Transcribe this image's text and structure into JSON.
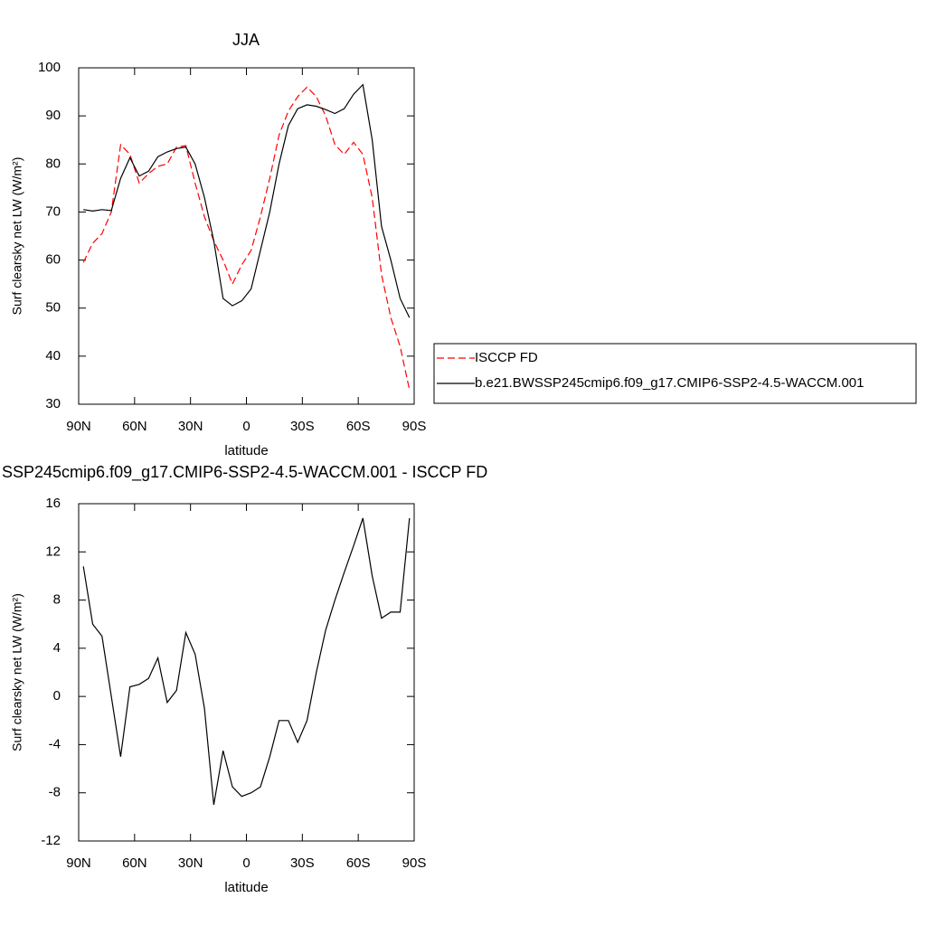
{
  "chart_data": [
    {
      "type": "line",
      "title": "JJA",
      "xlabel": "latitude",
      "ylabel": "Surf clearsky net LW (W/m²)",
      "xlim": [
        90,
        -90
      ],
      "xticks": [
        {
          "value": 90,
          "label": "90N"
        },
        {
          "value": 60,
          "label": "60N"
        },
        {
          "value": 30,
          "label": "30N"
        },
        0,
        {
          "value": -30,
          "label": "30S"
        },
        {
          "value": -60,
          "label": "60S"
        },
        {
          "value": -90,
          "label": "90S"
        }
      ],
      "ylim": [
        30,
        100
      ],
      "yticks": [
        30,
        40,
        50,
        60,
        70,
        80,
        90,
        100
      ],
      "x": [
        87.5,
        82.5,
        77.5,
        72.5,
        67.5,
        62.5,
        57.5,
        52.5,
        47.5,
        42.5,
        37.5,
        32.5,
        27.5,
        22.5,
        17.5,
        12.5,
        7.5,
        2.5,
        -2.5,
        -7.5,
        -12.5,
        -17.5,
        -22.5,
        -27.5,
        -32.5,
        -37.5,
        -42.5,
        -47.5,
        -52.5,
        -57.5,
        -62.5,
        -67.5,
        -72.5,
        -77.5,
        -82.5,
        -87.5
      ],
      "legend": "right",
      "series": [
        {
          "name": "ISCCP FD",
          "color": "#ff0000",
          "dashed": true,
          "values": [
            59.5,
            63.5,
            65.5,
            70,
            84,
            82,
            76,
            78,
            79.5,
            80,
            83.5,
            83.8,
            76,
            69,
            64,
            60,
            55,
            59,
            62,
            69,
            77,
            86,
            91,
            94,
            96,
            94,
            90,
            84,
            82,
            84.5,
            82,
            73,
            57,
            48,
            42,
            33
          ]
        },
        {
          "name": "b.e21.BWSSP245cmip6.f09_g17.CMIP6-SSP2-4.5-WACCM.001",
          "color": "#000000",
          "dashed": false,
          "values": [
            70.5,
            70.2,
            70.5,
            70.3,
            77,
            81.3,
            77.5,
            78.5,
            81.5,
            82.5,
            83.2,
            83.5,
            80,
            73,
            64,
            52,
            50.5,
            51.5,
            54,
            62,
            70,
            80,
            88,
            91.5,
            92.3,
            92,
            91.3,
            90.5,
            91.5,
            94.5,
            96.5,
            85,
            67,
            60,
            52,
            48
          ]
        }
      ]
    },
    {
      "type": "line",
      "title": "SSP245cmip6.f09_g17.CMIP6-SSP2-4.5-WACCM.001 - ISCCP FD",
      "xlabel": "latitude",
      "ylabel": "Surf clearsky net LW (W/m²)",
      "xlim": [
        90,
        -90
      ],
      "xticks": [
        {
          "value": 90,
          "label": "90N"
        },
        {
          "value": 60,
          "label": "60N"
        },
        {
          "value": 30,
          "label": "30N"
        },
        0,
        {
          "value": -30,
          "label": "30S"
        },
        {
          "value": -60,
          "label": "60S"
        },
        {
          "value": -90,
          "label": "90S"
        }
      ],
      "ylim": [
        -12,
        16
      ],
      "yticks": [
        -12,
        -8,
        -4,
        0,
        4,
        8,
        12,
        16
      ],
      "x": [
        87.5,
        82.5,
        77.5,
        72.5,
        67.5,
        62.5,
        57.5,
        52.5,
        47.5,
        42.5,
        37.5,
        32.5,
        27.5,
        22.5,
        17.5,
        12.5,
        7.5,
        2.5,
        -2.5,
        -7.5,
        -12.5,
        -17.5,
        -22.5,
        -27.5,
        -32.5,
        -37.5,
        -42.5,
        -47.5,
        -52.5,
        -57.5,
        -62.5,
        -67.5,
        -72.5,
        -77.5,
        -82.5,
        -87.5
      ],
      "color": "#000000",
      "values": [
        10.8,
        6,
        5,
        0,
        -5,
        0.8,
        1,
        1.5,
        3.2,
        -0.5,
        0.5,
        5.3,
        3.5,
        -1,
        -9,
        -4.5,
        -7.5,
        -8.3,
        -8,
        -7.5,
        -5,
        -2,
        -2,
        -3.8,
        -2,
        2,
        5.5,
        8,
        10.3,
        12.5,
        14.8,
        10,
        6.5,
        7,
        7,
        14.8
      ]
    }
  ]
}
